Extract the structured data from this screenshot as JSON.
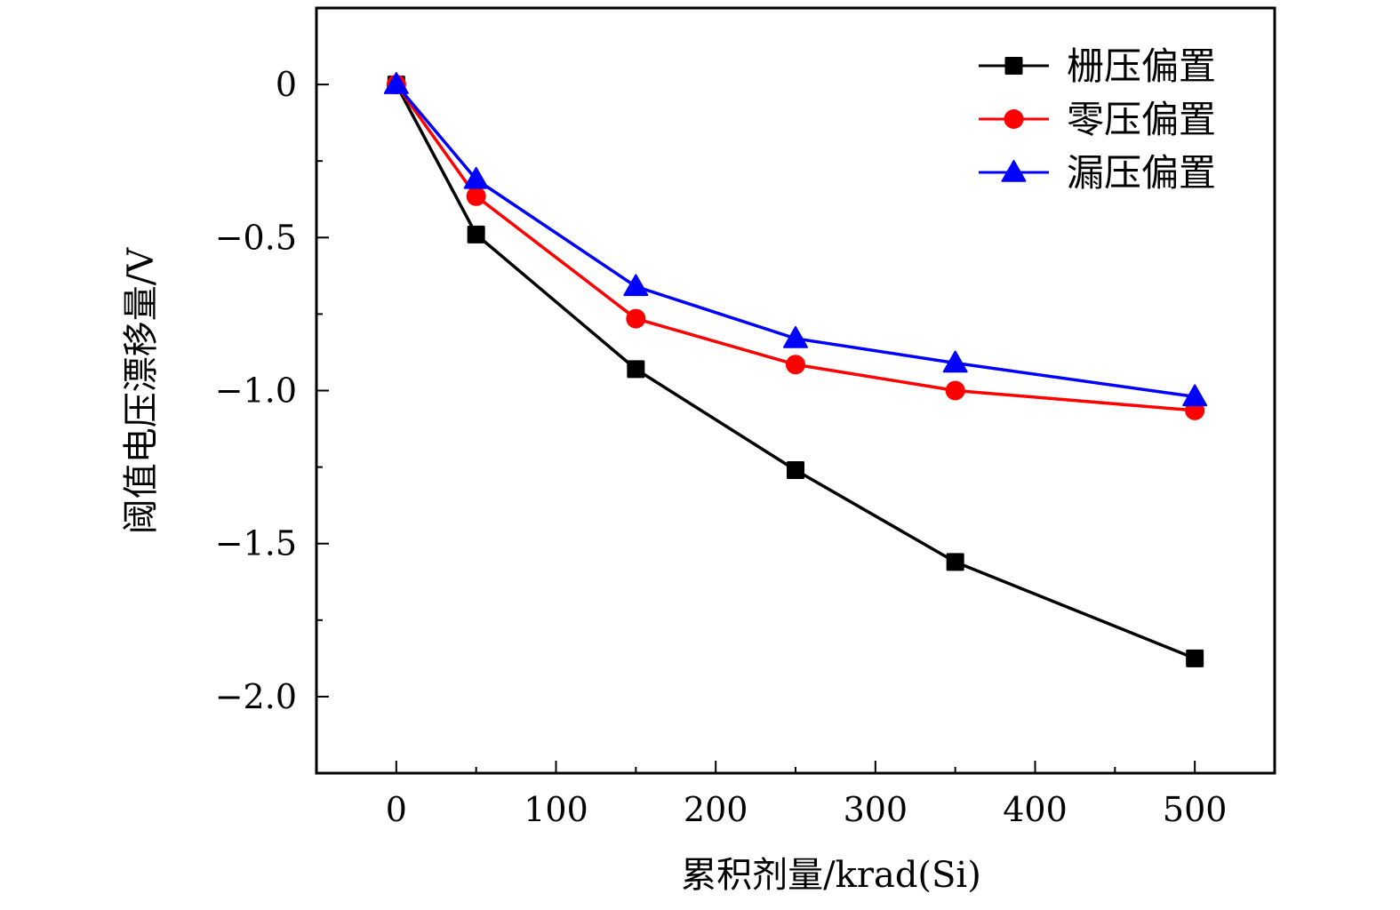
{
  "chart_data": {
    "type": "line",
    "title": "",
    "xlabel": "累积剂量/krad(Si)",
    "ylabel": "阈值电压漂移量/V",
    "x": [
      0,
      50,
      150,
      250,
      350,
      500
    ],
    "series": [
      {
        "name": "栅压偏置",
        "color": "#000000",
        "marker": "square",
        "values": [
          0,
          -0.49,
          -0.93,
          -1.26,
          -1.56,
          -1.875
        ]
      },
      {
        "name": "零压偏置",
        "color": "#ff0000",
        "marker": "circle",
        "values": [
          0,
          -0.365,
          -0.765,
          -0.915,
          -1.0,
          -1.065
        ]
      },
      {
        "name": "漏压偏置",
        "color": "#0000ff",
        "marker": "triangle-up",
        "values": [
          0,
          -0.31,
          -0.66,
          -0.83,
          -0.91,
          -1.02
        ]
      }
    ],
    "xlim": [
      -50,
      550
    ],
    "ylim": [
      -2.25,
      0.25
    ],
    "xticks": [
      0,
      100,
      200,
      300,
      400,
      500
    ],
    "xtick_labels": [
      "0",
      "100",
      "200",
      "300",
      "400",
      "500"
    ],
    "x_minor_ticks": [
      50,
      150,
      250,
      350,
      450
    ],
    "yticks": [
      0,
      -0.5,
      -1.0,
      -1.5,
      -2.0
    ],
    "ytick_labels": [
      "0",
      "−0.5",
      "−1.0",
      "−1.5",
      "−2.0"
    ],
    "y_minor_ticks": [
      -0.25,
      -0.75,
      -1.25,
      -1.75
    ],
    "grid": false,
    "legend_position": "top-right"
  }
}
